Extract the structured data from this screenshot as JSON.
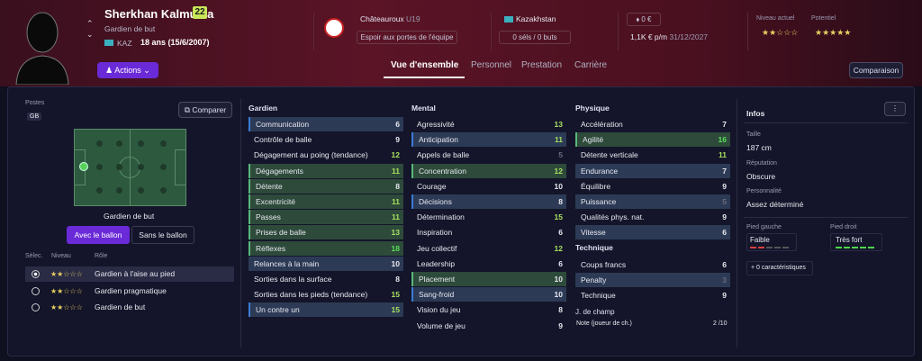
{
  "player": {
    "name": "Sherkhan Kalmurza",
    "ca": "22",
    "position": "Gardien de but",
    "nation": "KAZ",
    "age": "18 ans (15/6/2007)",
    "actions": "Actions"
  },
  "club": {
    "name": "Châteauroux",
    "team": "U19",
    "status": "Espoir aux portes de l'équipe"
  },
  "national": {
    "country": "Kazakhstan",
    "caps": "0 séls / 0 buts"
  },
  "contract": {
    "value": "0 €",
    "wage": "1,1K € p/m",
    "expiry": "31/12/2027"
  },
  "ratings": {
    "current_label": "Niveau actuel",
    "potential_label": "Potentiel",
    "current_stars": "★★☆☆☆",
    "potential_stars": "★★★★★"
  },
  "tabs": [
    "Vue d'ensemble",
    "Personnel",
    "Prestation",
    "Carrière"
  ],
  "compare_btn": "Comparaison",
  "left": {
    "postes": "Postes",
    "gb": "GB",
    "comparer": "Comparer",
    "pitch_label": "Gardien de but",
    "toggle_on": "Avec le ballon",
    "toggle_off": "Sans le ballon",
    "col_sel": "Sélec.",
    "col_level": "Niveau",
    "col_role": "Rôle",
    "roles": [
      {
        "stars": "★★☆☆☆",
        "name": "Gardien à l'aise au pied"
      },
      {
        "stars": "★★☆☆☆",
        "name": "Gardien pragmatique"
      },
      {
        "stars": "★★☆☆☆",
        "name": "Gardien de but"
      }
    ]
  },
  "gardien": {
    "title": "Gardien",
    "items": [
      {
        "n": "Communication",
        "v": "6"
      },
      {
        "n": "Contrôle de balle",
        "v": "9"
      },
      {
        "n": "Dégagement au poing (tendance)",
        "v": "12"
      },
      {
        "n": "Dégagements",
        "v": "11"
      },
      {
        "n": "Détente",
        "v": "8"
      },
      {
        "n": "Excentricité",
        "v": "11"
      },
      {
        "n": "Passes",
        "v": "11"
      },
      {
        "n": "Prises de balle",
        "v": "13"
      },
      {
        "n": "Réflexes",
        "v": "18"
      },
      {
        "n": "Relances à la main",
        "v": "10"
      },
      {
        "n": "Sorties dans la surface",
        "v": "8"
      },
      {
        "n": "Sorties dans les pieds (tendance)",
        "v": "15"
      },
      {
        "n": "Un contre un",
        "v": "15"
      }
    ]
  },
  "mental": {
    "title": "Mental",
    "items": [
      {
        "n": "Agressivité",
        "v": "13"
      },
      {
        "n": "Anticipation",
        "v": "11"
      },
      {
        "n": "Appels de balle",
        "v": "5"
      },
      {
        "n": "Concentration",
        "v": "12"
      },
      {
        "n": "Courage",
        "v": "10"
      },
      {
        "n": "Décisions",
        "v": "8"
      },
      {
        "n": "Détermination",
        "v": "15"
      },
      {
        "n": "Inspiration",
        "v": "6"
      },
      {
        "n": "Jeu collectif",
        "v": "12"
      },
      {
        "n": "Leadership",
        "v": "6"
      },
      {
        "n": "Placement",
        "v": "10"
      },
      {
        "n": "Sang-froid",
        "v": "10"
      },
      {
        "n": "Vision du jeu",
        "v": "8"
      },
      {
        "n": "Volume de jeu",
        "v": "9"
      }
    ]
  },
  "physique": {
    "title": "Physique",
    "items": [
      {
        "n": "Accélération",
        "v": "7"
      },
      {
        "n": "Agilité",
        "v": "16"
      },
      {
        "n": "Détente verticale",
        "v": "11"
      },
      {
        "n": "Endurance",
        "v": "7"
      },
      {
        "n": "Équilibre",
        "v": "9"
      },
      {
        "n": "Puissance",
        "v": "5"
      },
      {
        "n": "Qualités phys. nat.",
        "v": "9"
      },
      {
        "n": "Vitesse",
        "v": "6"
      }
    ]
  },
  "technique": {
    "title": "Technique",
    "items": [
      {
        "n": "Coups francs",
        "v": "6"
      },
      {
        "n": "Penalty",
        "v": "3"
      },
      {
        "n": "Technique",
        "v": "9"
      }
    ]
  },
  "jdc": {
    "title": "J. de champ",
    "note_label": "Note (joueur de ch.)",
    "note_value": "2 /10"
  },
  "infos": {
    "title": "Infos",
    "taille_label": "Taille",
    "taille": "187 cm",
    "rep_label": "Réputation",
    "rep": "Obscure",
    "pers_label": "Personnalité",
    "pers": "Assez déterminé",
    "pg_label": "Pied gauche",
    "pg": "Faible",
    "pd_label": "Pied droit",
    "pd": "Très fort",
    "carac": "0 caractéristiques"
  }
}
